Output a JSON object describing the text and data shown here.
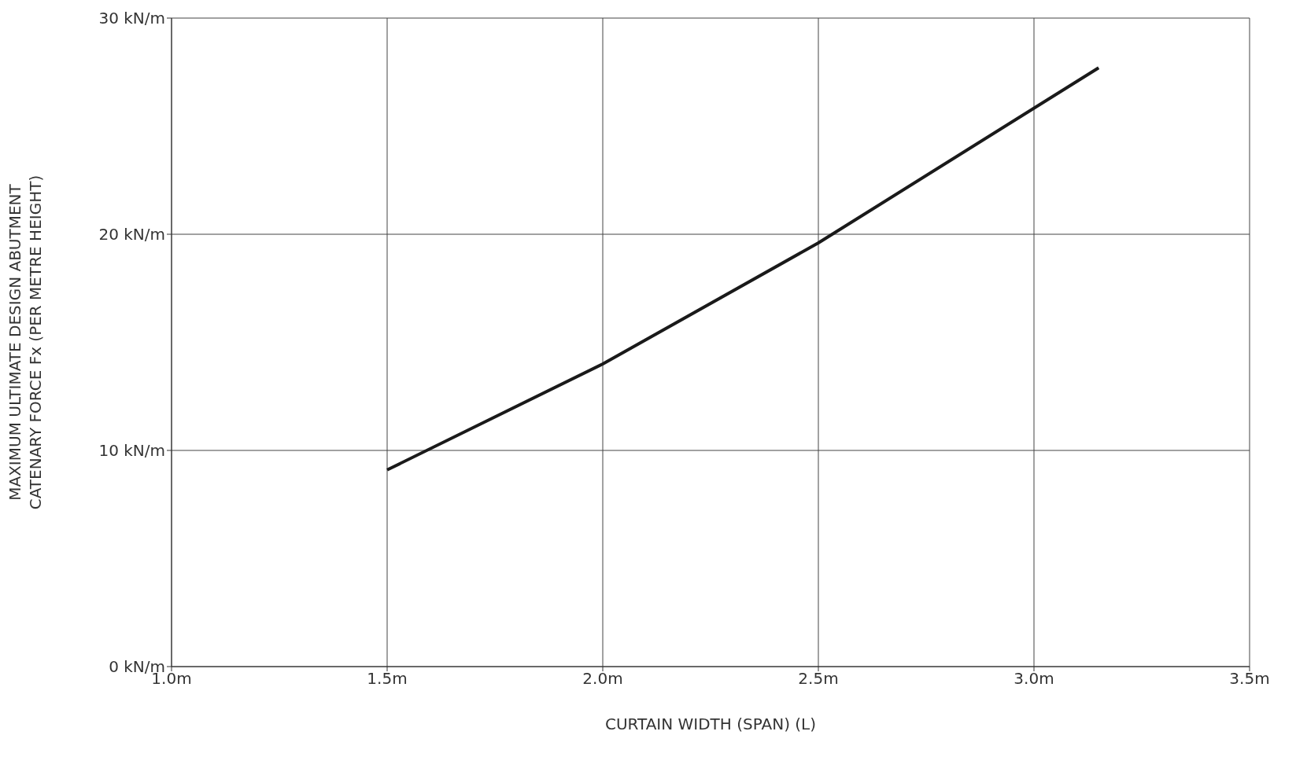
{
  "chart_data": {
    "type": "line",
    "xlabel": "CURTAIN WIDTH (SPAN) (L)",
    "ylabel": "MAXIMUM ULTIMATE DESIGN ABUTMENT\nCATENARY  FORCE Fx (PER METRE HEIGHT)",
    "x": [
      1.5,
      2.0,
      2.5,
      3.15
    ],
    "series": [
      {
        "color": "#1a1a1a",
        "values": [
          9.1,
          14.0,
          19.6,
          27.7
        ]
      }
    ],
    "xlim": [
      1.0,
      3.5
    ],
    "xticks": [
      {
        "value": 1.0,
        "label": "1.0m"
      },
      {
        "value": 1.5,
        "label": "1.5m"
      },
      {
        "value": 2.0,
        "label": "2.0m"
      },
      {
        "value": 2.5,
        "label": "2.5m"
      },
      {
        "value": 3.0,
        "label": "3.0m"
      },
      {
        "value": 3.5,
        "label": "3.5m"
      }
    ],
    "ylim": [
      0,
      30
    ],
    "yticks": [
      {
        "value": 0,
        "label": "0 kN/m"
      },
      {
        "value": 10,
        "label": "10 kN/m"
      },
      {
        "value": 20,
        "label": "20 kN/m"
      },
      {
        "value": 30,
        "label": "30 kN/m"
      }
    ],
    "grid": true,
    "marker": "none",
    "line_style": "solid"
  }
}
